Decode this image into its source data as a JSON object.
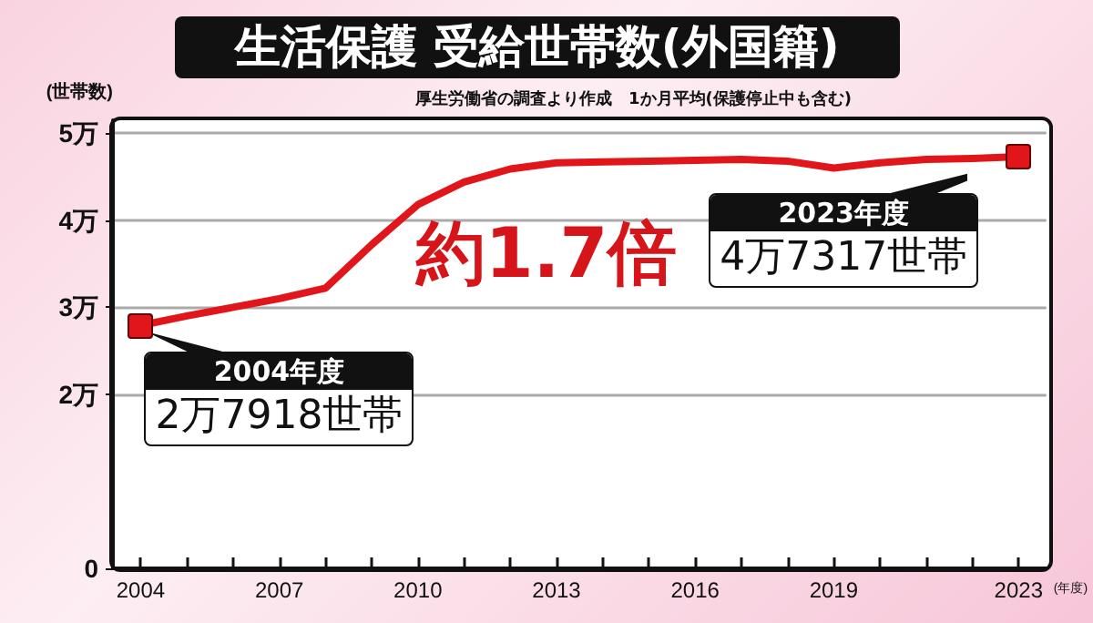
{
  "chart_data": {
    "type": "line",
    "title": "生活保護 受給世帯数(外国籍)",
    "subtitle": "厚生労働省の調査より作成　1か月平均(保護停止中も含む)",
    "ylabel": "(世帯数)",
    "xlabel": "(年度)",
    "x": [
      2004,
      2005,
      2006,
      2007,
      2008,
      2009,
      2010,
      2011,
      2012,
      2013,
      2014,
      2015,
      2016,
      2017,
      2018,
      2019,
      2020,
      2021,
      2022,
      2023
    ],
    "series": [
      {
        "color": "#e0161b",
        "values": [
          2.7918,
          2.9,
          3.0,
          3.1,
          3.22,
          3.72,
          4.18,
          4.44,
          4.59,
          4.66,
          4.67,
          4.68,
          4.69,
          4.7,
          4.68,
          4.6,
          4.66,
          4.7,
          4.71,
          4.7317
        ]
      }
    ],
    "xlim": [
      2003.4,
      2023.6
    ],
    "xticks": [
      2004,
      {
        "value": 2005,
        "label": null
      },
      {
        "value": 2006,
        "label": null
      },
      2007,
      {
        "value": 2008,
        "label": null
      },
      {
        "value": 2009,
        "label": null
      },
      2010,
      {
        "value": 2011,
        "label": null
      },
      {
        "value": 2012,
        "label": null
      },
      2013,
      {
        "value": 2014,
        "label": null
      },
      {
        "value": 2015,
        "label": null
      },
      2016,
      {
        "value": 2017,
        "label": null
      },
      {
        "value": 2018,
        "label": null
      },
      2019,
      {
        "value": 2020,
        "label": null
      },
      {
        "value": 2021,
        "label": null
      },
      {
        "value": 2022,
        "label": null
      },
      2023
    ],
    "ylim": [
      0,
      5.15
    ],
    "yticks": [
      0,
      {
        "value": 2,
        "label": "2万"
      },
      {
        "value": 3,
        "label": "3万"
      },
      {
        "value": 4,
        "label": "4万"
      },
      {
        "value": 5,
        "label": "5万"
      }
    ],
    "grid": "y",
    "marker": "none",
    "annotations": [
      {
        "text": "2004年度\n2万7918世帯",
        "x": 2004,
        "y": 2.7918
      },
      {
        "text": "2023年度\n4万7317世帯",
        "x": 2023,
        "y": 4.7317
      },
      "約1.7倍"
    ]
  }
}
